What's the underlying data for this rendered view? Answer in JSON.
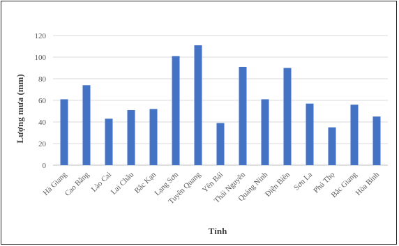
{
  "chart_data": {
    "type": "bar",
    "title": "",
    "xlabel": "Tỉnh",
    "ylabel": "Lượng mưa (mm)",
    "ylim": [
      0,
      120
    ],
    "yticks": [
      0,
      20,
      40,
      60,
      80,
      100,
      120
    ],
    "grid": true,
    "legend": "none",
    "bar_color": "#4472C4",
    "grid_color": "#D9D9D9",
    "categories": [
      "Hà Giang",
      "Cao Bằng",
      "Lào Cai",
      "Lai Châu",
      "Bắc Kạn",
      "Lạng Sơn",
      "Tuyên Quang",
      "Yên Bái",
      "Thái Nguyên",
      "Quảng Ninh",
      "Điện Biên",
      "Sơn La",
      "Phú Thọ",
      "Bắc Giang",
      "Hòa Bình"
    ],
    "values": [
      61,
      74,
      43,
      51,
      52,
      101,
      111,
      39,
      91,
      61,
      90,
      57,
      35,
      56,
      45
    ]
  }
}
